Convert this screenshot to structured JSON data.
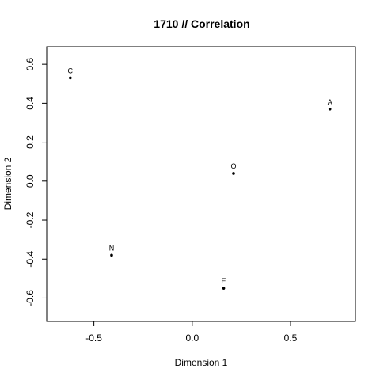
{
  "chart_data": {
    "type": "scatter",
    "title": "1710 // Correlation",
    "xlabel": "Dimension 1",
    "ylabel": "Dimension 2",
    "xlim": [
      -0.74,
      0.83
    ],
    "ylim": [
      -0.72,
      0.69
    ],
    "xticks": [
      -0.5,
      0.0,
      0.5
    ],
    "xtick_labels": [
      "-0.5",
      "0.0",
      "0.5"
    ],
    "yticks": [
      -0.6,
      -0.4,
      -0.2,
      0.0,
      0.2,
      0.4,
      0.6
    ],
    "ytick_labels": [
      "-0.6",
      "-0.4",
      "-0.2",
      "0.0",
      "0.2",
      "0.4",
      "0.6"
    ],
    "grid": false,
    "points": [
      {
        "label": "C",
        "x": -0.62,
        "y": 0.53
      },
      {
        "label": "A",
        "x": 0.7,
        "y": 0.37
      },
      {
        "label": "O",
        "x": 0.21,
        "y": 0.04
      },
      {
        "label": "N",
        "x": -0.41,
        "y": -0.38
      },
      {
        "label": "E",
        "x": 0.16,
        "y": -0.55
      }
    ],
    "colors": {
      "point": "#000000",
      "frame": "#000000"
    }
  }
}
